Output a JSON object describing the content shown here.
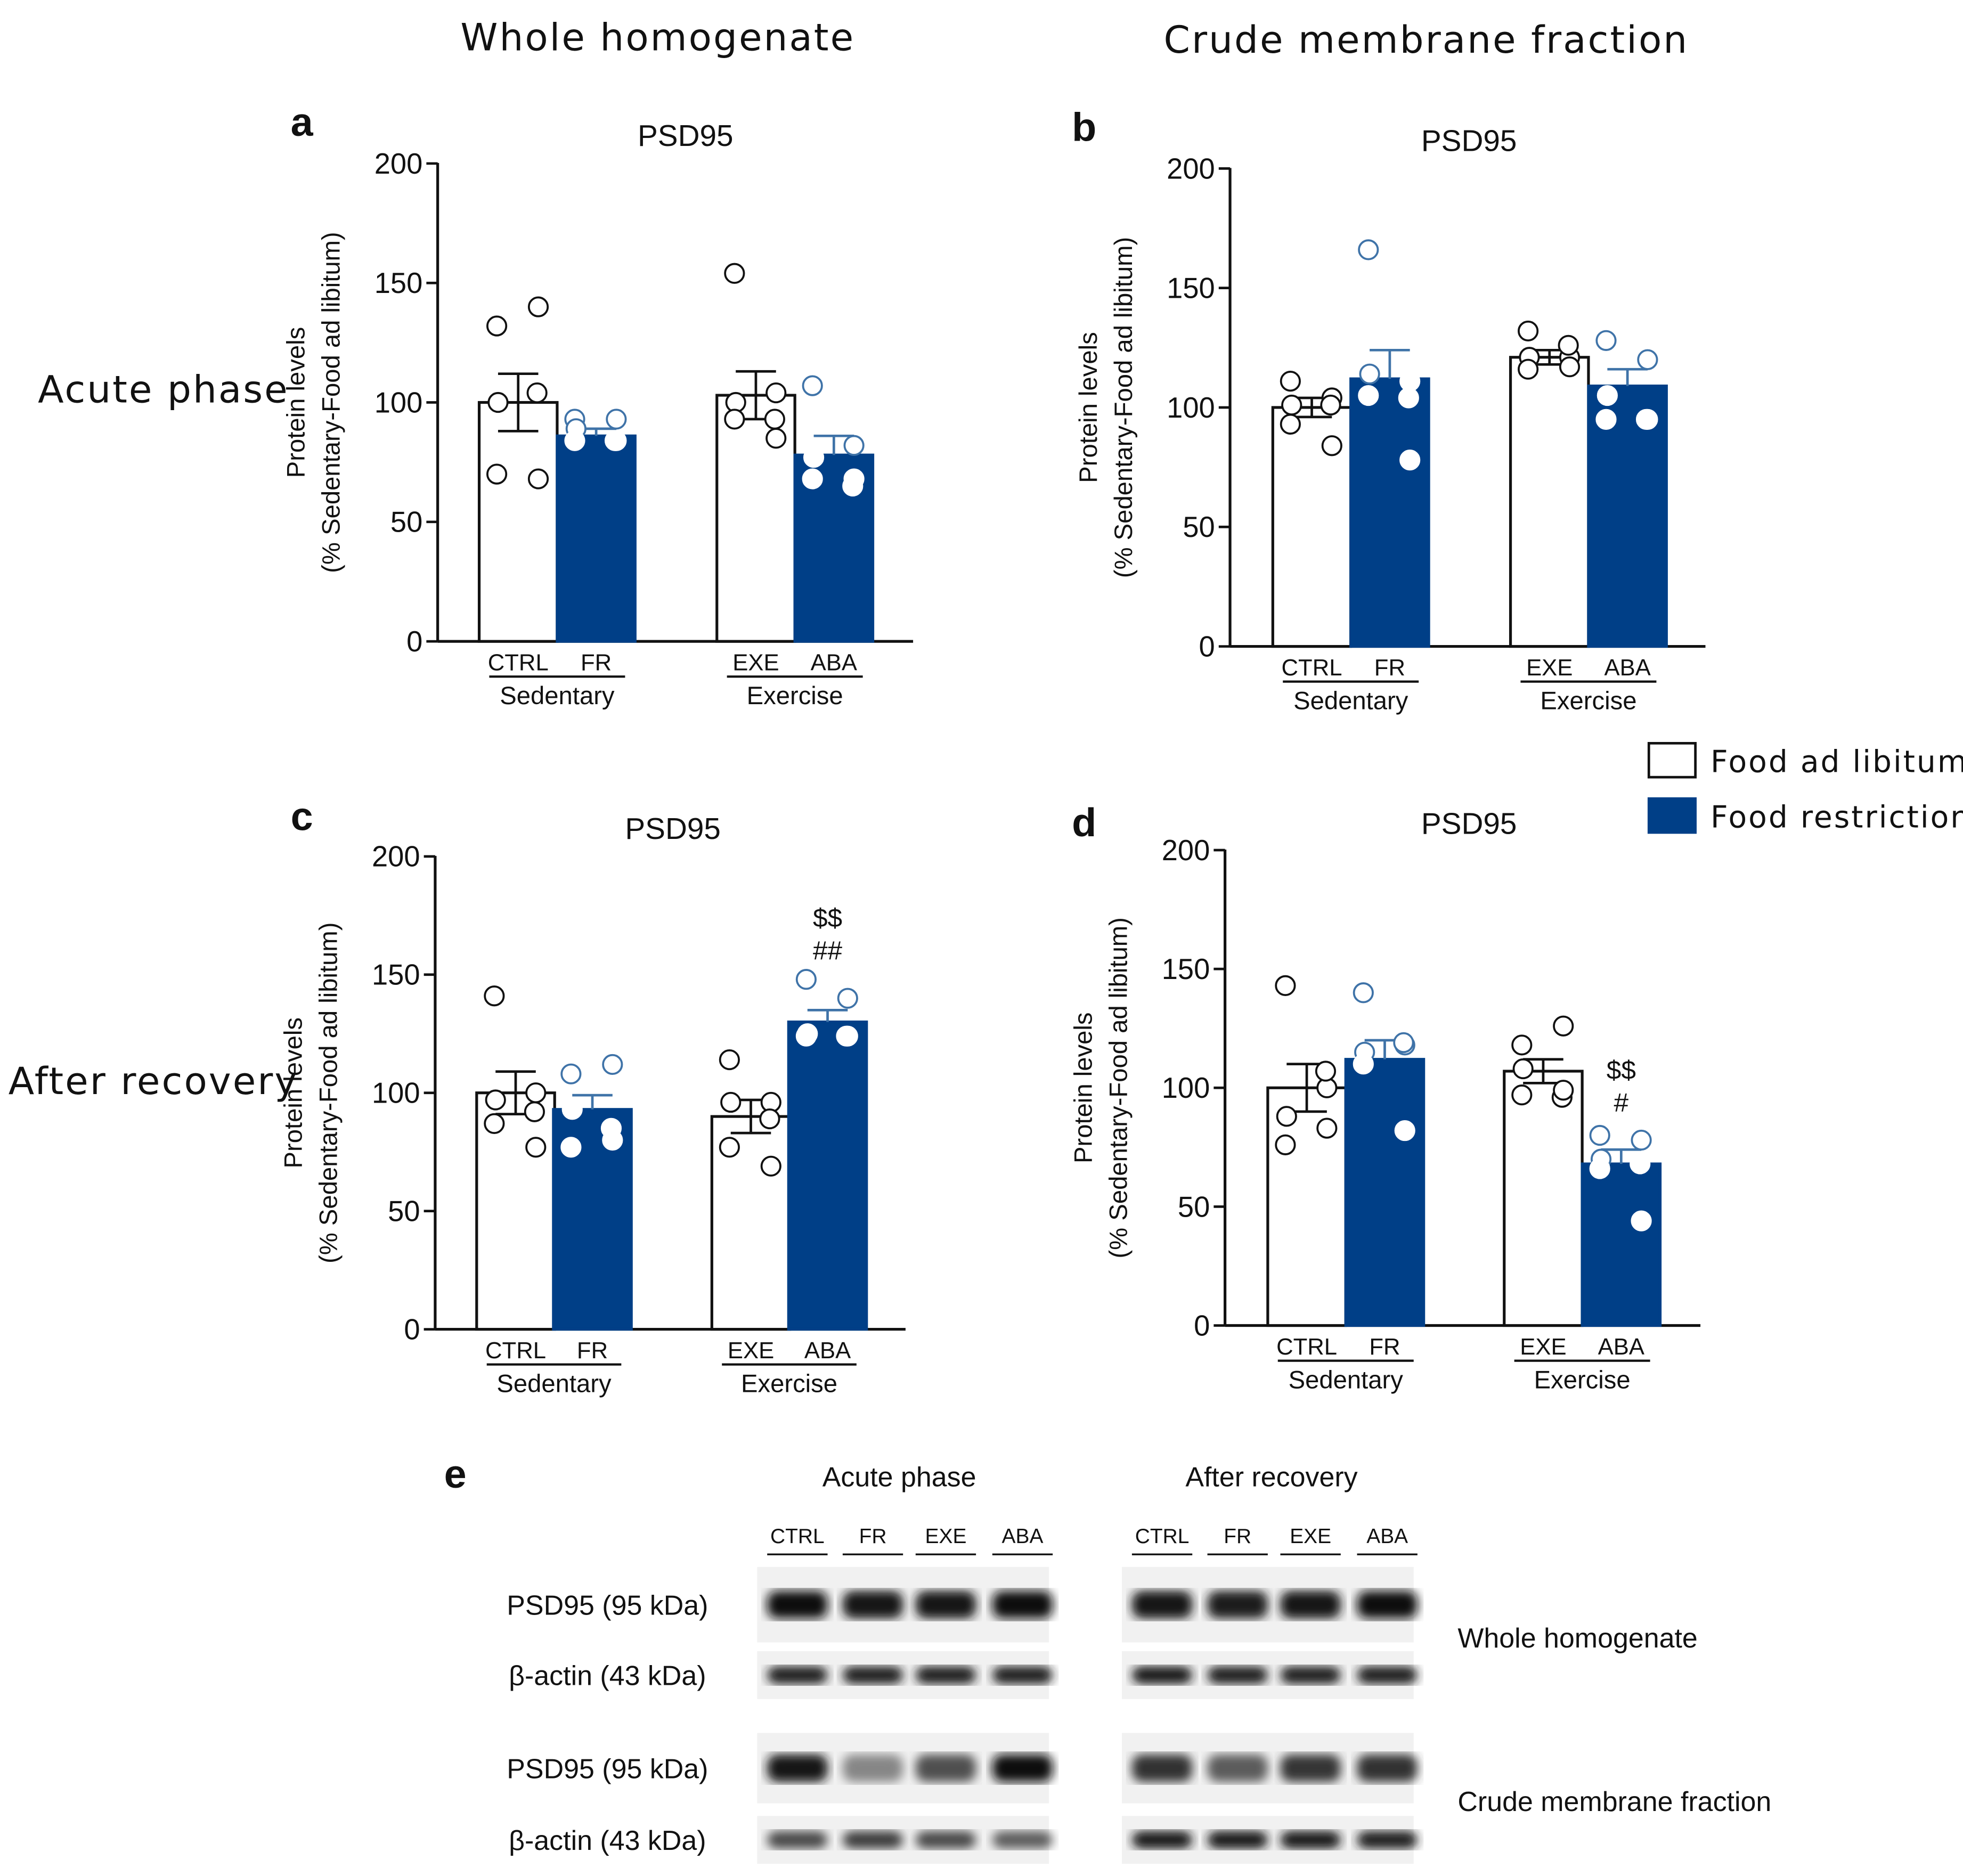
{
  "column_headers": [
    "Whole homogenate",
    "Crude membrane fraction"
  ],
  "row_headers": [
    "Acute phase",
    "After recovery"
  ],
  "legend": [
    {
      "label": "Food ad libitum",
      "color": "#ffffff"
    },
    {
      "label": "Food restriction",
      "color": "#003f87"
    }
  ],
  "colors": {
    "restriction": "#003f87",
    "outline": "#111111",
    "dot_open_blue": "#3f73a8"
  },
  "chart_data": [
    {
      "panel": "a",
      "type": "bar",
      "title": "PSD95",
      "ylabel": [
        "Protein levels",
        "(% Sedentary-Food ad libitum)"
      ],
      "ylim": [
        0,
        200
      ],
      "yticks": [
        0,
        50,
        100,
        150,
        200
      ],
      "groups": [
        {
          "label": "Sedentary",
          "categories": [
            "CTRL",
            "FR"
          ]
        },
        {
          "label": "Exercise",
          "categories": [
            "EXE",
            "ABA"
          ]
        }
      ],
      "categories": [
        "CTRL",
        "FR",
        "EXE",
        "ABA"
      ],
      "values": [
        100,
        86,
        103,
        78
      ],
      "errors": [
        12,
        3,
        10,
        8
      ],
      "points": [
        [
          132,
          140,
          100,
          104,
          70,
          68
        ],
        [
          93,
          93,
          89,
          84,
          84,
          84
        ],
        [
          154,
          104,
          100,
          93,
          93,
          85
        ],
        [
          107,
          82,
          77,
          65,
          68,
          68
        ]
      ],
      "annotations": [
        "",
        "",
        "",
        ""
      ]
    },
    {
      "panel": "b",
      "type": "bar",
      "title": "PSD95",
      "ylabel": [
        "Protein levels",
        "(% Sedentary-Food ad libitum)"
      ],
      "ylim": [
        0,
        200
      ],
      "yticks": [
        0,
        50,
        100,
        150,
        200
      ],
      "groups": [
        {
          "label": "Sedentary",
          "categories": [
            "CTRL",
            "FR"
          ]
        },
        {
          "label": "Exercise",
          "categories": [
            "EXE",
            "ABA"
          ]
        }
      ],
      "categories": [
        "CTRL",
        "FR",
        "EXE",
        "ABA"
      ],
      "values": [
        100,
        112,
        121,
        109
      ],
      "errors": [
        4,
        12,
        3,
        7
      ],
      "points": [
        [
          111,
          104,
          101,
          101,
          93,
          84
        ],
        [
          166,
          111,
          114,
          104,
          105,
          78
        ],
        [
          132,
          121,
          121,
          126,
          116,
          117
        ],
        [
          128,
          120,
          105,
          95,
          95,
          95
        ]
      ],
      "annotations": [
        "",
        "",
        "",
        ""
      ]
    },
    {
      "panel": "c",
      "type": "bar",
      "title": "PSD95",
      "ylabel": [
        "Protein levels",
        "(% Sedentary-Food ad libitum)"
      ],
      "ylim": [
        0,
        200
      ],
      "yticks": [
        0,
        50,
        100,
        150,
        200
      ],
      "groups": [
        {
          "label": "Sedentary",
          "categories": [
            "CTRL",
            "FR"
          ]
        },
        {
          "label": "Exercise",
          "categories": [
            "EXE",
            "ABA"
          ]
        }
      ],
      "categories": [
        "CTRL",
        "FR",
        "EXE",
        "ABA"
      ],
      "values": [
        100,
        93,
        90,
        130
      ],
      "errors": [
        9,
        6,
        7,
        5
      ],
      "points": [
        [
          141,
          100,
          97,
          92,
          87,
          77
        ],
        [
          108,
          112,
          93,
          85,
          77,
          80
        ],
        [
          114,
          96,
          96,
          89,
          77,
          69
        ],
        [
          148,
          140,
          125,
          124,
          124,
          124
        ]
      ],
      "annotations": [
        "",
        "",
        "",
        [
          "$$",
          "##"
        ]
      ]
    },
    {
      "panel": "d",
      "type": "bar",
      "title": "PSD95",
      "ylabel": [
        "Protein levels",
        "(% Sedentary-Food ad libitum)"
      ],
      "ylim": [
        0,
        200
      ],
      "yticks": [
        0,
        50,
        100,
        150,
        200
      ],
      "groups": [
        {
          "label": "Sedentary",
          "categories": [
            "CTRL",
            "FR"
          ]
        },
        {
          "label": "Exercise",
          "categories": [
            "EXE",
            "ABA"
          ]
        }
      ],
      "categories": [
        "CTRL",
        "FR",
        "EXE",
        "ABA"
      ],
      "values": [
        100,
        112,
        107,
        68
      ],
      "errors": [
        10,
        8,
        5,
        6
      ],
      "points": [
        [
          143,
          100,
          88,
          107,
          76,
          83
        ],
        [
          140,
          118,
          115,
          119,
          110,
          82
        ],
        [
          118,
          126,
          108,
          96,
          97,
          99
        ],
        [
          80,
          78,
          70,
          68,
          66,
          44
        ]
      ],
      "annotations": [
        "",
        "",
        "",
        [
          "$$",
          "#"
        ]
      ]
    }
  ],
  "blot": {
    "panel": "e",
    "sections": [
      "Acute phase",
      "After recovery"
    ],
    "lanes": [
      "CTRL",
      "FR",
      "EXE",
      "ABA"
    ],
    "row_labels": [
      "PSD95 (95 kDa)",
      "β-actin (43 kDa)",
      "PSD95 (95 kDa)",
      "β-actin (43 kDa)"
    ],
    "fraction_labels": [
      "Whole homogenate",
      "Crude membrane fraction"
    ],
    "band_intensity": [
      [
        [
          0.95,
          0.93,
          0.92,
          0.95
        ],
        [
          0.92,
          0.9,
          0.93,
          0.95
        ]
      ],
      [
        [
          0.9,
          0.9,
          0.9,
          0.88
        ],
        [
          0.92,
          0.9,
          0.9,
          0.9
        ]
      ],
      [
        [
          0.92,
          0.4,
          0.65,
          0.95
        ],
        [
          0.8,
          0.6,
          0.78,
          0.8
        ]
      ],
      [
        [
          0.7,
          0.75,
          0.7,
          0.6
        ],
        [
          0.92,
          0.92,
          0.92,
          0.9
        ]
      ]
    ]
  }
}
